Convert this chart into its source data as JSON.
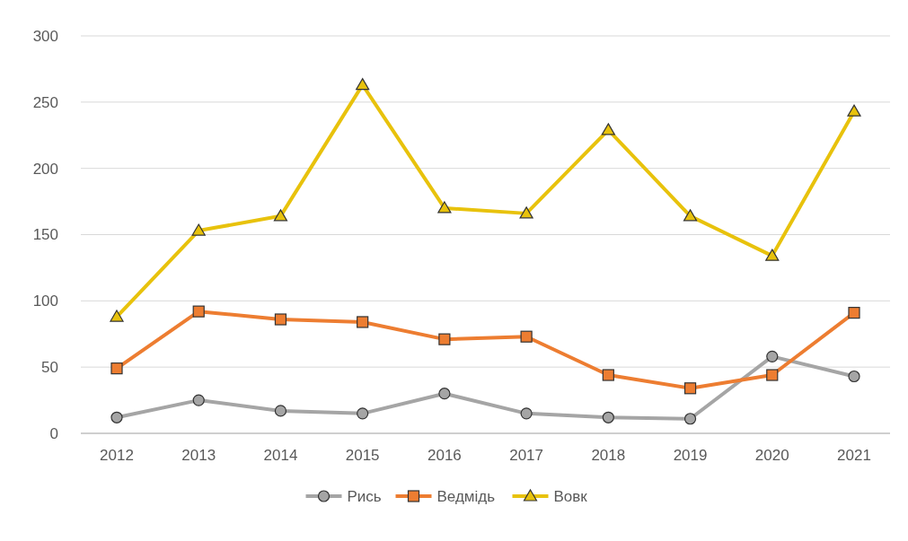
{
  "chart_data": {
    "type": "line",
    "categories": [
      "2012",
      "2013",
      "2014",
      "2015",
      "2016",
      "2017",
      "2018",
      "2019",
      "2020",
      "2021"
    ],
    "ylim": [
      0,
      300
    ],
    "yticks": [
      0,
      50,
      100,
      150,
      200,
      250,
      300
    ],
    "grid": "y",
    "legend": "bottom",
    "series": [
      {
        "name": "Рись",
        "color": "#a5a5a5",
        "marker": "circle",
        "values": [
          12,
          25,
          17,
          15,
          30,
          15,
          12,
          11,
          58,
          43
        ]
      },
      {
        "name": "Ведмідь",
        "color": "#ed7d31",
        "marker": "square",
        "values": [
          49,
          92,
          86,
          84,
          71,
          73,
          44,
          34,
          44,
          91
        ]
      },
      {
        "name": "Вовк",
        "color": "#e8c20c",
        "marker": "triangle",
        "values": [
          88,
          153,
          164,
          263,
          170,
          166,
          229,
          164,
          134,
          243
        ]
      }
    ]
  }
}
